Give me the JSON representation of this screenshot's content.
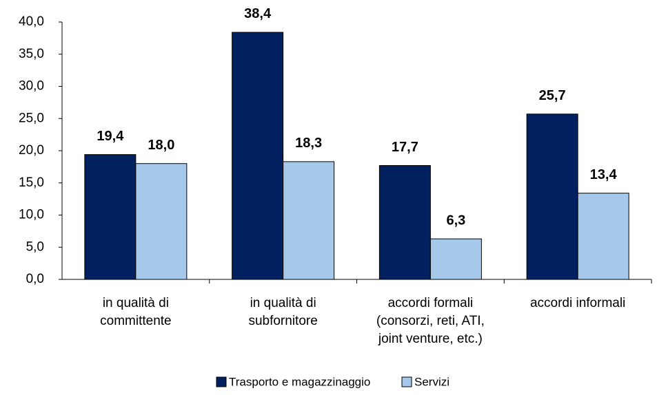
{
  "chart_data": {
    "type": "bar",
    "categories": [
      [
        "in qualità di",
        "committente"
      ],
      [
        "in qualità di",
        "subfornitore"
      ],
      [
        "accordi formali",
        "(consorzi, reti, ATI,",
        "joint venture, etc.)"
      ],
      [
        "accordi informali"
      ]
    ],
    "series": [
      {
        "name": "Trasporto e magazzinaggio",
        "color": "#002060",
        "values": [
          19.4,
          38.4,
          17.7,
          25.7
        ],
        "value_labels": [
          "19,4",
          "38,4",
          "17,7",
          "25,7"
        ]
      },
      {
        "name": "Servizi",
        "color": "#a6c8ea",
        "values": [
          18.0,
          18.3,
          6.3,
          13.4
        ],
        "value_labels": [
          "18,0",
          "18,3",
          "6,3",
          "13,4"
        ]
      }
    ],
    "ylim": [
      0,
      40
    ],
    "yticks": [
      {
        "value": 0,
        "label": "0,0"
      },
      {
        "value": 5,
        "label": "5,0"
      },
      {
        "value": 10,
        "label": "10,0"
      },
      {
        "value": 15,
        "label": "15,0"
      },
      {
        "value": 20,
        "label": "20,0"
      },
      {
        "value": 25,
        "label": "25,0"
      },
      {
        "value": 30,
        "label": "30,0"
      },
      {
        "value": 35,
        "label": "35,0"
      },
      {
        "value": 40,
        "label": "40,0"
      }
    ],
    "legend": "bottom"
  }
}
